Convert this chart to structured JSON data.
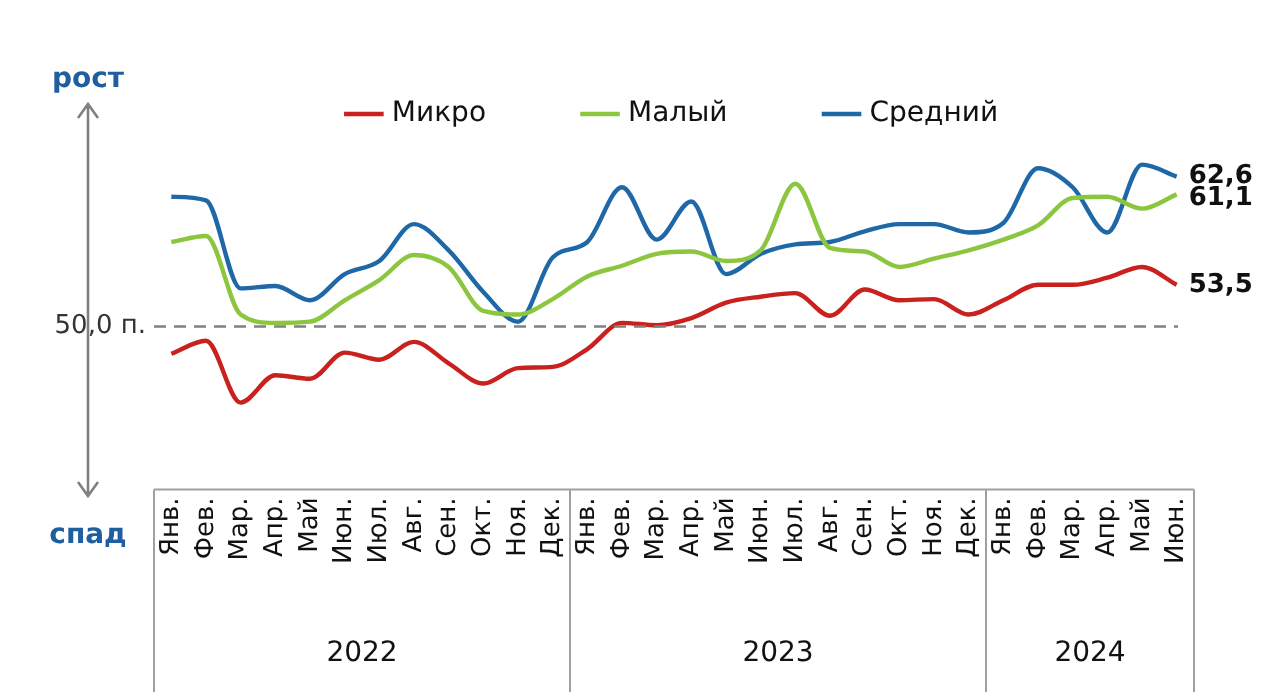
{
  "chart_data": {
    "type": "line",
    "categories": [
      "Янв.",
      "Фев.",
      "Мар.",
      "Апр.",
      "Май",
      "Июн.",
      "Июл.",
      "Авг.",
      "Сен.",
      "Окт.",
      "Ноя.",
      "Дек.",
      "Янв.",
      "Фев.",
      "Мар.",
      "Апр.",
      "Май",
      "Июн.",
      "Июл.",
      "Авг.",
      "Сен.",
      "Окт.",
      "Ноя.",
      "Дек.",
      "Янв.",
      "Фев.",
      "Мар.",
      "Апр.",
      "Май",
      "Июн."
    ],
    "series": [
      {
        "name": "Микро",
        "color": "#c8211e",
        "values": [
          47.7,
          48.8,
          43.6,
          45.9,
          45.6,
          47.8,
          47.2,
          48.7,
          46.9,
          45.2,
          46.5,
          46.6,
          48.1,
          50.3,
          50.1,
          50.7,
          52.0,
          52.5,
          52.8,
          50.9,
          53.1,
          52.2,
          52.3,
          51.0,
          52.2,
          53.5,
          53.5,
          54.1,
          55.0,
          53.5
        ],
        "value_labels": [
          null,
          null,
          null,
          null,
          null,
          null,
          null,
          null,
          null,
          null,
          null,
          null,
          null,
          null,
          null,
          null,
          null,
          null,
          null,
          null,
          null,
          null,
          null,
          null,
          null,
          null,
          null,
          null,
          null,
          "53,5"
        ]
      },
      {
        "name": "Малый",
        "color": "#8cc63f",
        "values": [
          57.1,
          57.6,
          51.0,
          50.3,
          50.4,
          52.2,
          53.9,
          56.0,
          55.0,
          51.3,
          51.0,
          52.3,
          54.2,
          55.1,
          56.1,
          56.3,
          55.5,
          56.4,
          62.0,
          56.6,
          56.3,
          55.0,
          55.7,
          56.4,
          57.3,
          58.5,
          60.8,
          60.9,
          59.9,
          61.1
        ],
        "value_labels": [
          null,
          null,
          null,
          null,
          null,
          null,
          null,
          null,
          null,
          null,
          null,
          null,
          null,
          null,
          null,
          null,
          null,
          null,
          null,
          null,
          null,
          null,
          null,
          null,
          null,
          null,
          null,
          null,
          null,
          "61,1"
        ]
      },
      {
        "name": "Средний",
        "color": "#1f68a8",
        "values": [
          60.9,
          60.6,
          53.2,
          53.4,
          52.2,
          54.4,
          55.5,
          58.6,
          56.4,
          52.9,
          50.4,
          55.8,
          57.1,
          61.7,
          57.3,
          60.5,
          54.4,
          56.1,
          56.9,
          57.1,
          58.0,
          58.6,
          58.6,
          57.9,
          58.7,
          63.3,
          61.7,
          57.9,
          63.6,
          62.6
        ],
        "value_labels": [
          null,
          null,
          null,
          null,
          null,
          null,
          null,
          null,
          null,
          null,
          null,
          null,
          null,
          null,
          null,
          null,
          null,
          null,
          null,
          null,
          null,
          null,
          null,
          null,
          null,
          null,
          null,
          null,
          null,
          "62,6"
        ]
      }
    ],
    "ref_lines": [
      {
        "axis": "y",
        "value": 50,
        "label": "50,0 п.",
        "color": "#808080",
        "line_style": "dashed"
      }
    ],
    "annotations": [
      "рост",
      "спад",
      "2022",
      "2023",
      "2024"
    ],
    "legend": "top",
    "grid": false,
    "marker": "none",
    "line_style": "solid",
    "tick_labels": "x"
  }
}
